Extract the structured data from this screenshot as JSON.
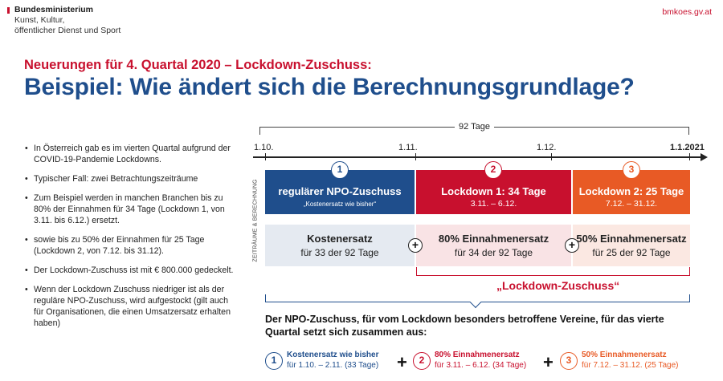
{
  "header": {
    "ministry_line1": "Bundesministerium",
    "ministry_line2": "Kunst, Kultur,",
    "ministry_line3": "öffentlicher Dienst und Sport",
    "website": "bmkoes.gv.at"
  },
  "subtitle": "Neuerungen für 4. Quartal 2020 – Lockdown-Zuschuss:",
  "title": "Beispiel: Wie ändert sich die Berechnungsgrundlage?",
  "bullets": [
    "In Österreich gab es im vierten Quartal aufgrund der COVID-19-Pandemie Lockdowns.",
    "Typischer Fall: zwei Betrachtungszeiträume",
    "Zum Beispiel werden in manchen Branchen bis zu 80% der Einnahmen für 34 Tage (Lockdown 1, von 3.11. bis 6.12.) ersetzt.",
    "sowie bis zu 50% der Einnahmen für 25 Tage (Lockdown 2, von 7.12. bis 31.12).",
    "Der Lockdown-Zuschuss ist mit € 800.000 gedeckelt.",
    "Wenn der Lockdown Zuschuss niedriger ist als der reguläre NPO-Zuschuss, wird aufgestockt (gilt auch für Organisationen, die einen Umsatzersatz erhalten haben)"
  ],
  "timeline": {
    "span_label": "92 Tage",
    "dates": [
      "1.10.",
      "1.11.",
      "1.12.",
      "1.1.2021"
    ],
    "vertical_label": "ZEITRÄUME & BERECHNUNG"
  },
  "periods": [
    {
      "number": "1",
      "title": "regulärer NPO-Zuschuss",
      "subtitle": "„Kostenersatz wie bisher“",
      "color": "#1f4e8c"
    },
    {
      "number": "2",
      "title": "Lockdown 1: 34 Tage",
      "subtitle": "3.11. – 6.12.",
      "color": "#c8102e"
    },
    {
      "number": "3",
      "title": "Lockdown 2: 25 Tage",
      "subtitle": "7.12. – 31.12.",
      "color": "#e85a25"
    }
  ],
  "calculations": [
    {
      "title": "Kostenersatz",
      "subtitle": "für 33 der 92 Tage"
    },
    {
      "title": "80% Einnahmenersatz",
      "subtitle": "für 34 der 92 Tage"
    },
    {
      "title": "50% Einnahmenersatz",
      "subtitle": "für 25 der 92 Tage"
    }
  ],
  "plus_sign": "+",
  "lockdown_label": "„Lockdown-Zuschuss“",
  "summary": "Der NPO-Zuschuss, für vom Lockdown besonders betroffene Vereine, für das vierte Quartal setzt sich zusammen aus:",
  "formula": [
    {
      "number": "1",
      "line1": "Kostenersatz wie bisher",
      "line2": "für 1.10. – 2.11. (33 Tage)",
      "color": "#1f4e8c"
    },
    {
      "number": "2",
      "line1": "80% Einnahmenersatz",
      "line2": "für 3.11. – 6.12. (34 Tage)",
      "color": "#c8102e"
    },
    {
      "number": "3",
      "line1": "50% Einnahmenersatz",
      "line2": "für 7.12. – 31.12. (25 Tage)",
      "color": "#e85a25"
    }
  ]
}
